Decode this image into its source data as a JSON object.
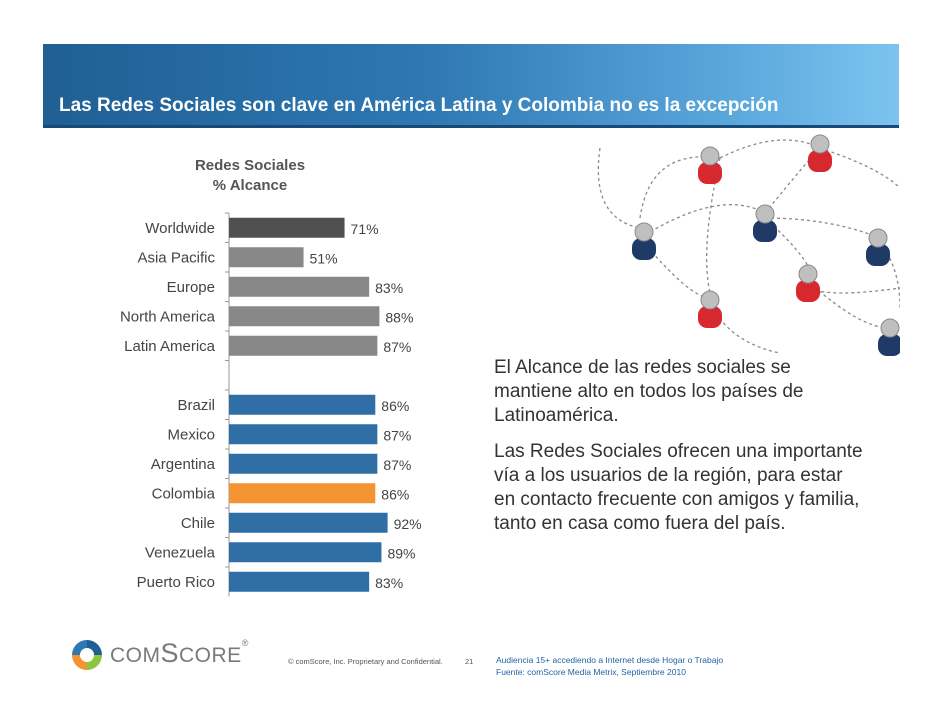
{
  "header": {
    "title": "Las Redes Sociales son clave en América Latina  y Colombia no es la excepción"
  },
  "chart_data": {
    "type": "bar",
    "orientation": "horizontal",
    "title": "Redes Sociales",
    "subtitle": "% Alcance",
    "categories": [
      "Worldwide",
      "Asia Pacific",
      "Europe",
      "North America",
      "Latin America",
      "",
      "Brazil",
      "Mexico",
      "Argentina",
      "Colombia",
      "Chile",
      "Venezuela",
      "Puerto Rico"
    ],
    "values": [
      71,
      51,
      83,
      88,
      87,
      null,
      86,
      87,
      87,
      86,
      92,
      89,
      83
    ],
    "labels": [
      "71%",
      "51%",
      "83%",
      "88%",
      "87%",
      "",
      "86%",
      "87%",
      "87%",
      "86%",
      "92%",
      "89%",
      "83%"
    ],
    "colors": [
      "#505050",
      "#888888",
      "#888888",
      "#888888",
      "#888888",
      "",
      "#2f6fa6",
      "#2f6fa6",
      "#2f6fa6",
      "#f39332",
      "#2f6fa6",
      "#2f6fa6",
      "#2f6fa6"
    ],
    "xlim": [
      0,
      100
    ],
    "grid": false,
    "legend": "none"
  },
  "body": {
    "paragraph1": "El Alcance de las redes sociales se mantiene alto en todos los países de Latinoamérica.",
    "paragraph2": "Las Redes Sociales ofrecen una importante vía a los usuarios de la región, para estar en contacto frecuente con amigos y familia, tanto  en casa como fuera del país."
  },
  "footer": {
    "logo_main": "COM",
    "logo_s": "S",
    "logo_rest": "CORE",
    "logo_mark": "®",
    "copyright": "© comScore, Inc.  Proprietary and Confidential.",
    "page_number": "21",
    "source_line1": "Audiencia 15+ accediendo a Internet desde Hogar o Trabajo",
    "source_line2": "Fuente:  comScore Media Metrix, Septiembre 2010"
  },
  "colors": {
    "header_blue": "#2f78b3",
    "bar_gray": "#888888",
    "bar_dark": "#505050",
    "bar_blue": "#2f6fa6",
    "highlight_orange": "#f39332",
    "person_red": "#d6282e",
    "person_navy": "#1f3a66"
  },
  "icons": [
    "comscore-logo-icon",
    "social-network-illustration-icon"
  ]
}
